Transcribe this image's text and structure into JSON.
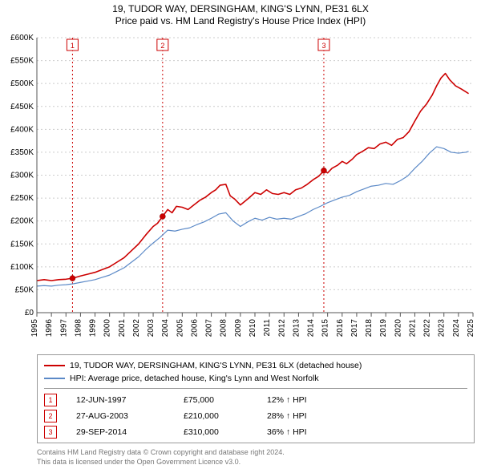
{
  "header": {
    "line1": "19, TUDOR WAY, DERSINGHAM, KING'S LYNN, PE31 6LX",
    "line2": "Price paid vs. HM Land Registry's House Price Index (HPI)"
  },
  "chart": {
    "type": "line",
    "background_color": "#ffffff",
    "grid_color": "#cccccc",
    "gridline_dash": "2,3",
    "axis_color": "#555555",
    "x": {
      "start": 1995,
      "end": 2025,
      "step": 1,
      "labels": [
        "1995",
        "1996",
        "1997",
        "1998",
        "1999",
        "2000",
        "2001",
        "2002",
        "2003",
        "2004",
        "2005",
        "2006",
        "2007",
        "2008",
        "2009",
        "2010",
        "2011",
        "2012",
        "2013",
        "2014",
        "2015",
        "2016",
        "2017",
        "2018",
        "2019",
        "2020",
        "2021",
        "2022",
        "2023",
        "2024",
        "2025"
      ]
    },
    "y": {
      "start": 0,
      "end": 600,
      "step": 50,
      "labels": [
        "£0",
        "£50K",
        "£100K",
        "£150K",
        "£200K",
        "£250K",
        "£300K",
        "£350K",
        "£400K",
        "£450K",
        "£500K",
        "£550K",
        "£600K"
      ]
    },
    "series": {
      "property": {
        "name": "19, TUDOR WAY, DERSINGHAM, KING'S LYNN, PE31 6LX (detached house)",
        "color": "#cc0000",
        "width": 1.6,
        "data": [
          [
            1995.0,
            70
          ],
          [
            1995.5,
            72
          ],
          [
            1996.0,
            70
          ],
          [
            1996.5,
            72
          ],
          [
            1997.0,
            73
          ],
          [
            1997.45,
            75
          ],
          [
            1998.0,
            80
          ],
          [
            1998.5,
            84
          ],
          [
            1999.0,
            88
          ],
          [
            1999.5,
            94
          ],
          [
            2000.0,
            100
          ],
          [
            2000.5,
            110
          ],
          [
            2001.0,
            120
          ],
          [
            2001.5,
            135
          ],
          [
            2002.0,
            150
          ],
          [
            2002.5,
            170
          ],
          [
            2003.0,
            188
          ],
          [
            2003.3,
            195
          ],
          [
            2003.65,
            210
          ],
          [
            2004.0,
            225
          ],
          [
            2004.3,
            218
          ],
          [
            2004.6,
            232
          ],
          [
            2005.0,
            230
          ],
          [
            2005.4,
            225
          ],
          [
            2005.8,
            235
          ],
          [
            2006.2,
            245
          ],
          [
            2006.6,
            252
          ],
          [
            2007.0,
            262
          ],
          [
            2007.3,
            268
          ],
          [
            2007.6,
            278
          ],
          [
            2008.0,
            280
          ],
          [
            2008.3,
            255
          ],
          [
            2008.6,
            248
          ],
          [
            2009.0,
            235
          ],
          [
            2009.5,
            248
          ],
          [
            2010.0,
            262
          ],
          [
            2010.4,
            258
          ],
          [
            2010.8,
            268
          ],
          [
            2011.2,
            260
          ],
          [
            2011.6,
            258
          ],
          [
            2012.0,
            262
          ],
          [
            2012.4,
            258
          ],
          [
            2012.8,
            268
          ],
          [
            2013.2,
            272
          ],
          [
            2013.6,
            280
          ],
          [
            2014.0,
            290
          ],
          [
            2014.4,
            298
          ],
          [
            2014.74,
            310
          ],
          [
            2015.0,
            305
          ],
          [
            2015.3,
            315
          ],
          [
            2015.7,
            322
          ],
          [
            2016.0,
            330
          ],
          [
            2016.3,
            325
          ],
          [
            2016.7,
            335
          ],
          [
            2017.0,
            345
          ],
          [
            2017.4,
            352
          ],
          [
            2017.8,
            360
          ],
          [
            2018.2,
            358
          ],
          [
            2018.6,
            368
          ],
          [
            2019.0,
            372
          ],
          [
            2019.4,
            365
          ],
          [
            2019.8,
            378
          ],
          [
            2020.2,
            382
          ],
          [
            2020.6,
            395
          ],
          [
            2021.0,
            418
          ],
          [
            2021.4,
            440
          ],
          [
            2021.8,
            455
          ],
          [
            2022.2,
            475
          ],
          [
            2022.5,
            495
          ],
          [
            2022.8,
            512
          ],
          [
            2023.1,
            522
          ],
          [
            2023.4,
            508
          ],
          [
            2023.8,
            495
          ],
          [
            2024.2,
            488
          ],
          [
            2024.5,
            482
          ],
          [
            2024.7,
            478
          ]
        ]
      },
      "hpi": {
        "name": "HPI: Average price, detached house, King's Lynn and West Norfolk",
        "color": "#5b89c7",
        "width": 1.2,
        "data": [
          [
            1995.0,
            58
          ],
          [
            1995.5,
            59
          ],
          [
            1996.0,
            58
          ],
          [
            1996.5,
            60
          ],
          [
            1997.0,
            61
          ],
          [
            1997.5,
            63
          ],
          [
            1998.0,
            66
          ],
          [
            1998.5,
            69
          ],
          [
            1999.0,
            72
          ],
          [
            1999.5,
            77
          ],
          [
            2000.0,
            82
          ],
          [
            2000.5,
            90
          ],
          [
            2001.0,
            98
          ],
          [
            2001.5,
            110
          ],
          [
            2002.0,
            122
          ],
          [
            2002.5,
            138
          ],
          [
            2003.0,
            152
          ],
          [
            2003.5,
            165
          ],
          [
            2004.0,
            180
          ],
          [
            2004.5,
            178
          ],
          [
            2005.0,
            182
          ],
          [
            2005.5,
            185
          ],
          [
            2006.0,
            192
          ],
          [
            2006.5,
            198
          ],
          [
            2007.0,
            206
          ],
          [
            2007.5,
            215
          ],
          [
            2008.0,
            218
          ],
          [
            2008.5,
            200
          ],
          [
            2009.0,
            188
          ],
          [
            2009.5,
            198
          ],
          [
            2010.0,
            206
          ],
          [
            2010.5,
            202
          ],
          [
            2011.0,
            208
          ],
          [
            2011.5,
            204
          ],
          [
            2012.0,
            206
          ],
          [
            2012.5,
            204
          ],
          [
            2013.0,
            210
          ],
          [
            2013.5,
            216
          ],
          [
            2014.0,
            225
          ],
          [
            2014.5,
            232
          ],
          [
            2015.0,
            240
          ],
          [
            2015.5,
            246
          ],
          [
            2016.0,
            252
          ],
          [
            2016.5,
            256
          ],
          [
            2017.0,
            264
          ],
          [
            2017.5,
            270
          ],
          [
            2018.0,
            276
          ],
          [
            2018.5,
            278
          ],
          [
            2019.0,
            282
          ],
          [
            2019.5,
            280
          ],
          [
            2020.0,
            288
          ],
          [
            2020.5,
            298
          ],
          [
            2021.0,
            315
          ],
          [
            2021.5,
            330
          ],
          [
            2022.0,
            348
          ],
          [
            2022.5,
            362
          ],
          [
            2023.0,
            358
          ],
          [
            2023.5,
            350
          ],
          [
            2024.0,
            348
          ],
          [
            2024.5,
            350
          ],
          [
            2024.7,
            352
          ]
        ]
      }
    },
    "markers": [
      {
        "n": "1",
        "year": 1997.45,
        "value": 75
      },
      {
        "n": "2",
        "year": 2003.65,
        "value": 210
      },
      {
        "n": "3",
        "year": 2014.74,
        "value": 310
      }
    ],
    "marker_line_color": "#cc0000",
    "marker_box_border": "#cc0000",
    "marker_box_fill": "#ffffff",
    "marker_point_fill": "#cc0000"
  },
  "legend": {
    "series1_color": "#cc0000",
    "series1_label": "19, TUDOR WAY, DERSINGHAM, KING'S LYNN, PE31 6LX (detached house)",
    "series2_color": "#5b89c7",
    "series2_label": "HPI: Average price, detached house, King's Lynn and West Norfolk"
  },
  "marker_rows": [
    {
      "n": "1",
      "date": "12-JUN-1997",
      "price": "£75,000",
      "hpi": "12% ↑ HPI"
    },
    {
      "n": "2",
      "date": "27-AUG-2003",
      "price": "£210,000",
      "hpi": "28% ↑ HPI"
    },
    {
      "n": "3",
      "date": "29-SEP-2014",
      "price": "£310,000",
      "hpi": "36% ↑ HPI"
    }
  ],
  "footer": {
    "line1": "Contains HM Land Registry data © Crown copyright and database right 2024.",
    "line2": "This data is licensed under the Open Government Licence v3.0."
  }
}
